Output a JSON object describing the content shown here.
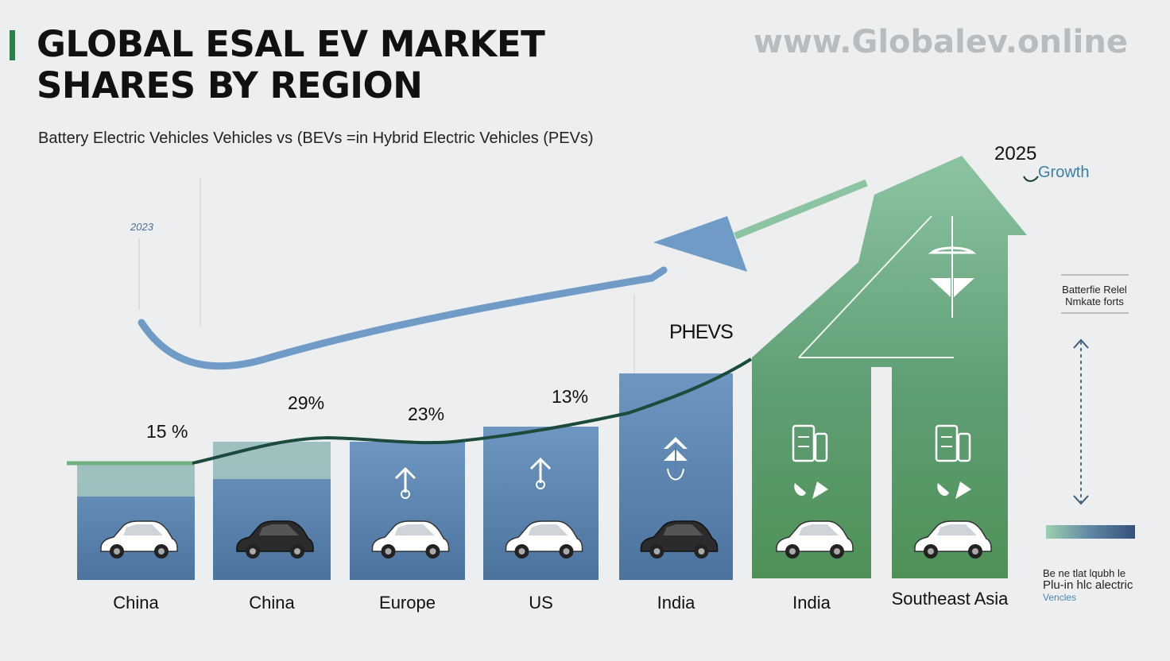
{
  "header": {
    "title_line1": "GLOBAL ESAL EV MARKET",
    "title_line2": "SHARES BY REGION",
    "watermark": "www.Globalev.online",
    "subtitle": "Battery Electric Vehicles Vehicles vs (BEVs =in Hybrid Electric Vehicles (PEVs)"
  },
  "annotations": {
    "year_start": "2023",
    "year_end": "2025",
    "growth": "Growth",
    "pevs": "PHEVS",
    "legend_top_line1": "Batterfie Relel",
    "legend_top_line2": "Nmkate forts",
    "legend_bottom_line1": "Be ne tlat lqubh le",
    "legend_bottom_line2": "Plu-in hlc alectric",
    "legend_bottom_line3": "Vencles"
  },
  "colors": {
    "blue_bar": "#5580ad",
    "green_bar": "#5b9c69",
    "line_dark": "#1c4a3c",
    "arrow_blue": "#6f9bc6",
    "arrow_green": "#8cc4a2"
  },
  "chart_data": {
    "type": "bar",
    "title": "GLOBAL ESAL EV MARKET SHARES BY REGION",
    "subtitle": "Battery Electric Vehicles Vehicles vs (BEVs =in Hybrid Electric Vehicles (PEVs)",
    "categories": [
      "China",
      "China",
      "Europe",
      "US",
      "India",
      "India",
      "Southeast Asia"
    ],
    "value_labels": [
      "15 %",
      "29%",
      "23%",
      "13%",
      "",
      "",
      ""
    ],
    "bar_colors": [
      "blue",
      "blue",
      "blue",
      "blue",
      "blue",
      "green",
      "green"
    ],
    "ylim": [
      0,
      100
    ]
  }
}
